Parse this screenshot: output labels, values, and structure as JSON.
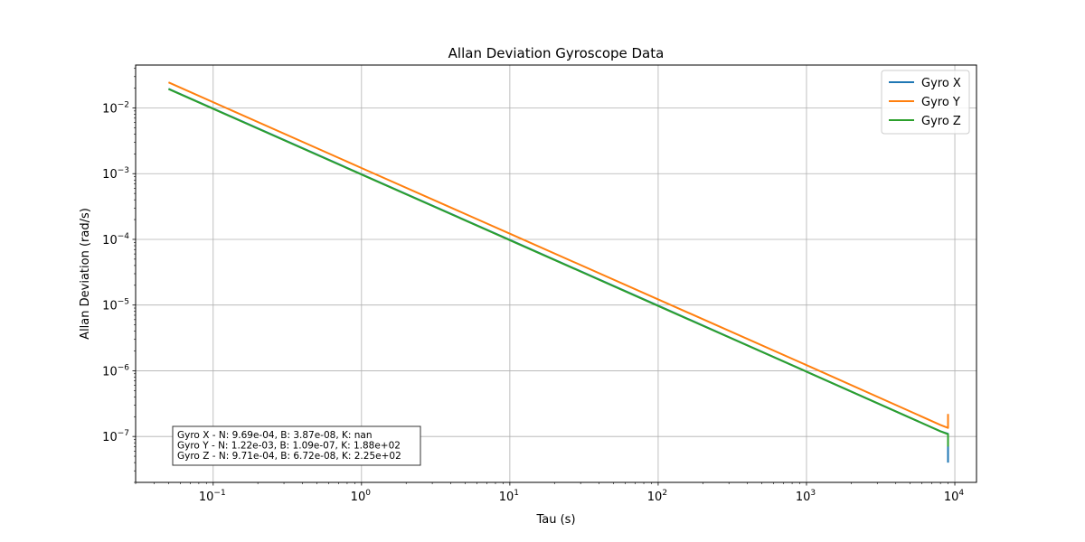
{
  "chart_data": {
    "type": "line",
    "title": "Allan Deviation Gyroscope Data",
    "xlabel": "Tau (s)",
    "ylabel": "Allan Deviation (rad/s)",
    "xscale": "log",
    "yscale": "log",
    "xlim": [
      0.03,
      14000
    ],
    "ylim": [
      2e-08,
      0.045
    ],
    "grid": true,
    "legend_position": "top-right",
    "x_ticks": [
      {
        "value": 0.1,
        "base": "10",
        "exp": "−1"
      },
      {
        "value": 1,
        "base": "10",
        "exp": "0"
      },
      {
        "value": 10,
        "base": "10",
        "exp": "1"
      },
      {
        "value": 100,
        "base": "10",
        "exp": "2"
      },
      {
        "value": 1000,
        "base": "10",
        "exp": "3"
      },
      {
        "value": 10000,
        "base": "10",
        "exp": "4"
      }
    ],
    "y_ticks": [
      {
        "value": 1e-07,
        "base": "10",
        "exp": "−7"
      },
      {
        "value": 1e-06,
        "base": "10",
        "exp": "−6"
      },
      {
        "value": 1e-05,
        "base": "10",
        "exp": "−5"
      },
      {
        "value": 0.0001,
        "base": "10",
        "exp": "−4"
      },
      {
        "value": 0.001,
        "base": "10",
        "exp": "−3"
      },
      {
        "value": 0.01,
        "base": "10",
        "exp": "−2"
      }
    ],
    "series": [
      {
        "name": "Gyro X",
        "color": "#1f77b4",
        "x": [
          0.05,
          1,
          10,
          100,
          1000,
          8000,
          9000,
          9000
        ],
        "y": [
          0.0196,
          0.00098,
          9.8e-05,
          9.8e-06,
          9.7e-07,
          1.2e-07,
          1.1e-07,
          4e-08
        ]
      },
      {
        "name": "Gyro Y",
        "color": "#ff7f0e",
        "x": [
          0.05,
          1,
          10,
          100,
          1000,
          8000,
          9000,
          9000
        ],
        "y": [
          0.0245,
          0.00122,
          0.000122,
          1.22e-05,
          1.22e-06,
          1.5e-07,
          1.35e-07,
          2.2e-07
        ]
      },
      {
        "name": "Gyro Z",
        "color": "#2ca02c",
        "x": [
          0.05,
          1,
          10,
          100,
          1000,
          8000,
          9000,
          9000
        ],
        "y": [
          0.0194,
          0.00097,
          9.7e-05,
          9.7e-06,
          9.7e-07,
          1.2e-07,
          1.08e-07,
          7e-08
        ]
      }
    ],
    "annotation": [
      "Gyro X - N: 9.69e-04, B: 3.87e-08, K: nan",
      "Gyro Y - N: 1.22e-03, B: 1.09e-07, K: 1.88e+02",
      "Gyro Z - N: 9.71e-04, B: 6.72e-08, K: 2.25e+02"
    ]
  }
}
